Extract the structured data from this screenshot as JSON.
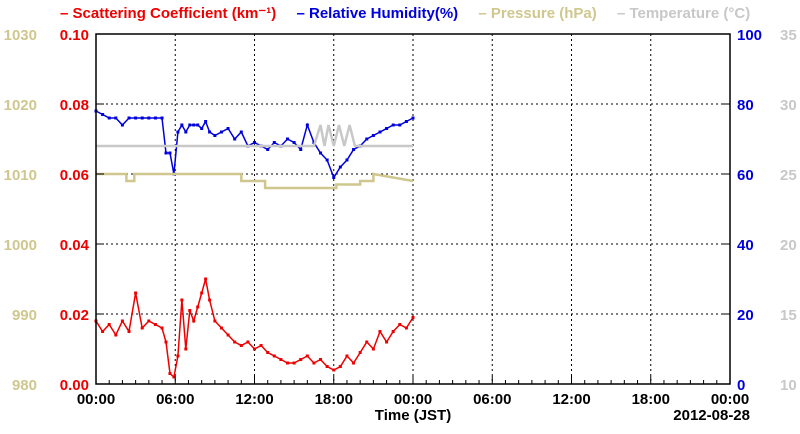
{
  "chart_data": {
    "type": "line",
    "legend": [
      {
        "text": "Scattering Coefficient (km⁻¹)",
        "color": "#ee0000"
      },
      {
        "text": "Relative Humidity(%)",
        "color": "#0000dd"
      },
      {
        "text": "Pressure (hPa)",
        "color": "#cfc78e"
      },
      {
        "text": "Temperature (°C)",
        "color": "#c8c8c8"
      }
    ],
    "xlabel": "Time (JST)",
    "date_label": "2012-08-28",
    "x_tick_labels": [
      "00:00",
      "06:00",
      "12:00",
      "18:00",
      "00:00",
      "06:00",
      "12:00",
      "18:00",
      "00:00"
    ],
    "xlim_hours": [
      0,
      48
    ],
    "grid": true,
    "axes": {
      "scattering": {
        "ticks": [
          "0.00",
          "0.02",
          "0.04",
          "0.06",
          "0.08",
          "0.10"
        ],
        "ylim": [
          0,
          0.1
        ],
        "color": "#ee0000"
      },
      "pressure": {
        "ticks": [
          "980",
          "990",
          "1000",
          "1010",
          "1020",
          "1030"
        ],
        "ylim": [
          980,
          1030
        ],
        "color": "#cfc78e"
      },
      "humidity": {
        "ticks": [
          "0",
          "20",
          "40",
          "60",
          "80",
          "100"
        ],
        "ylim": [
          0,
          100
        ],
        "color": "#0000dd"
      },
      "temperature": {
        "ticks": [
          "10",
          "15",
          "20",
          "25",
          "30",
          "35"
        ],
        "ylim": [
          10,
          35
        ],
        "color": "#c8c8c8"
      }
    },
    "series": [
      {
        "name": "Scattering Coefficient",
        "axis": "scattering",
        "color": "#ee0000",
        "x": [
          0,
          0.5,
          1,
          1.5,
          2,
          2.5,
          3,
          3.5,
          4,
          4.5,
          5,
          5.3,
          5.6,
          5.9,
          6.2,
          6.5,
          6.8,
          7.1,
          7.4,
          7.7,
          8,
          8.3,
          8.6,
          9,
          9.5,
          10,
          10.5,
          11,
          11.5,
          12,
          12.5,
          13,
          13.5,
          14,
          14.5,
          15,
          15.5,
          16,
          16.5,
          17,
          17.5,
          18,
          18.5,
          19,
          19.5,
          20,
          20.5,
          21,
          21.5,
          22,
          22.5,
          23,
          23.5,
          24
        ],
        "values": [
          0.018,
          0.015,
          0.017,
          0.014,
          0.018,
          0.015,
          0.026,
          0.016,
          0.018,
          0.017,
          0.016,
          0.012,
          0.003,
          0.002,
          0.008,
          0.024,
          0.01,
          0.021,
          0.018,
          0.022,
          0.026,
          0.03,
          0.024,
          0.018,
          0.016,
          0.014,
          0.012,
          0.011,
          0.012,
          0.01,
          0.011,
          0.009,
          0.008,
          0.007,
          0.006,
          0.006,
          0.007,
          0.008,
          0.006,
          0.007,
          0.005,
          0.004,
          0.005,
          0.008,
          0.006,
          0.009,
          0.012,
          0.01,
          0.015,
          0.012,
          0.015,
          0.017,
          0.016,
          0.019
        ]
      },
      {
        "name": "Relative Humidity",
        "axis": "humidity",
        "color": "#0000dd",
        "x": [
          0,
          0.5,
          1,
          1.5,
          2,
          2.5,
          3,
          3.5,
          4,
          4.5,
          5,
          5.3,
          5.6,
          5.9,
          6.2,
          6.5,
          6.8,
          7.1,
          7.4,
          7.7,
          8,
          8.3,
          8.6,
          9,
          9.5,
          10,
          10.5,
          11,
          11.5,
          12,
          12.5,
          13,
          13.5,
          14,
          14.5,
          15,
          15.5,
          16,
          16.5,
          17,
          17.5,
          18,
          18.5,
          19,
          19.5,
          20,
          20.5,
          21,
          21.5,
          22,
          22.5,
          23,
          23.5,
          24
        ],
        "values": [
          78,
          77,
          76,
          76,
          74,
          76,
          76,
          76,
          76,
          76,
          76,
          66,
          66,
          60,
          72,
          74,
          72,
          74,
          74,
          74,
          73,
          75,
          72,
          71,
          72,
          73,
          70,
          72,
          68,
          69,
          68,
          67,
          69,
          68,
          70,
          69,
          67,
          74,
          69,
          66,
          64,
          59,
          62,
          64,
          67,
          68,
          70,
          71,
          72,
          73,
          74,
          74,
          75,
          76
        ]
      },
      {
        "name": "Pressure",
        "axis": "pressure",
        "color": "#cfc78e",
        "x": [
          0,
          2.3,
          2.3,
          2.9,
          2.9,
          11,
          11,
          12.8,
          12.8,
          18.2,
          18.2,
          20,
          20,
          21,
          21,
          24
        ],
        "values": [
          1010,
          1010,
          1009,
          1009,
          1010,
          1010,
          1009,
          1009,
          1008,
          1008,
          1008.5,
          1008.5,
          1009,
          1009,
          1010,
          1009
        ]
      },
      {
        "name": "Temperature",
        "axis": "temperature",
        "color": "#c8c8c8",
        "x": [
          0,
          16.5,
          17,
          17.3,
          17.6,
          18,
          18.4,
          18.8,
          19.2,
          19.6,
          24
        ],
        "values": [
          27,
          27,
          28.5,
          27,
          28.5,
          27,
          28.5,
          27,
          28.5,
          27,
          27
        ]
      }
    ]
  }
}
